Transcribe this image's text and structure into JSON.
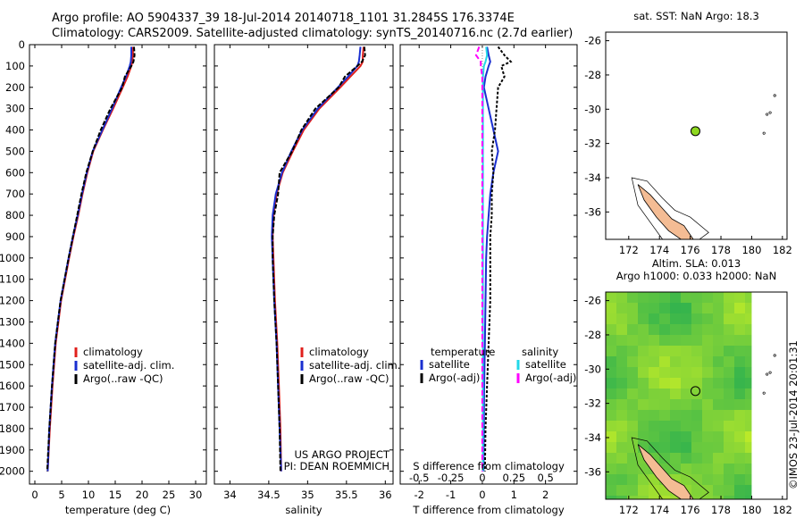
{
  "header": {
    "line1": "Argo profile: AO 5904337_39 18-Jul-2014 20140718_1101 31.2845S 176.3374E",
    "line2": "Climatology: CARS2009. Satellite-adjusted climatology: synTS_20140716.nc (2.7d earlier)"
  },
  "colors": {
    "climatology": "#e0201c",
    "satellite": "#1a2fd0",
    "argo": "#000000",
    "salinity_satellite": "#22d8e8",
    "salinity_argo": "#ff00ff",
    "land": "#f4bc94",
    "marker": "#8ed820"
  },
  "chart_data": [
    {
      "type": "line",
      "panel": "temperature",
      "xlabel": "temperature (deg C)",
      "ylabel": "",
      "xlim": [
        -1,
        32
      ],
      "ylim": [
        2060,
        0
      ],
      "xticks": [
        "0",
        "5",
        "10",
        "15",
        "20",
        "25",
        "30"
      ],
      "yticks": [
        "0",
        "100",
        "200",
        "300",
        "400",
        "500",
        "600",
        "700",
        "800",
        "900",
        "1000",
        "1100",
        "1200",
        "1300",
        "1400",
        "1500",
        "1600",
        "1700",
        "1800",
        "1900",
        "2000"
      ],
      "y": [
        10,
        50,
        80,
        100,
        150,
        200,
        300,
        400,
        500,
        600,
        700,
        800,
        900,
        1000,
        1200,
        1400,
        1600,
        1800,
        2000
      ],
      "series": [
        {
          "name": "climatology",
          "x": [
            18.3,
            18.3,
            18.2,
            18.0,
            17.3,
            16.4,
            14.6,
            12.7,
            10.9,
            9.8,
            8.9,
            8.1,
            7.2,
            6.4,
            4.9,
            3.9,
            3.3,
            2.8,
            2.4
          ]
        },
        {
          "name": "satellite-adj. clim.",
          "x": [
            18.0,
            18.0,
            17.9,
            17.7,
            17.0,
            16.1,
            14.4,
            12.6,
            10.8,
            9.7,
            8.8,
            8.0,
            7.1,
            6.3,
            4.8,
            3.8,
            3.2,
            2.7,
            2.4
          ]
        },
        {
          "name": "Argo(..raw -QC)",
          "x": [
            18.5,
            18.6,
            18.4,
            18.0,
            16.8,
            16.3,
            14.1,
            12.3,
            10.8,
            9.6,
            8.7,
            7.9,
            7.1,
            6.3,
            4.8,
            3.8,
            3.2,
            2.7,
            2.3
          ]
        }
      ],
      "legend": {
        "position": "center",
        "entries": [
          "climatology",
          "satellite-adj. clim.",
          "Argo(..raw -QC)"
        ]
      }
    },
    {
      "type": "line",
      "panel": "salinity",
      "xlabel": "salinity",
      "xlim": [
        33.8,
        36.1
      ],
      "ylim": [
        2060,
        0
      ],
      "xticks": [
        "34",
        "34.5",
        "35",
        "35.5",
        "36"
      ],
      "y": [
        10,
        50,
        80,
        100,
        150,
        200,
        300,
        400,
        500,
        600,
        700,
        800,
        900,
        1000,
        1200,
        1400,
        1600,
        1800,
        2000
      ],
      "series": [
        {
          "name": "climatology",
          "x": [
            35.72,
            35.71,
            35.71,
            35.68,
            35.55,
            35.42,
            35.15,
            34.95,
            34.81,
            34.68,
            34.6,
            34.56,
            34.55,
            34.56,
            34.58,
            34.61,
            34.63,
            34.65,
            34.66
          ]
        },
        {
          "name": "satellite-adj. clim.",
          "x": [
            35.68,
            35.67,
            35.66,
            35.64,
            35.52,
            35.39,
            35.13,
            34.93,
            34.79,
            34.67,
            34.59,
            34.55,
            34.54,
            34.55,
            34.57,
            34.6,
            34.62,
            34.64,
            34.66
          ]
        },
        {
          "name": "Argo(..raw -QC)",
          "x": [
            35.73,
            35.74,
            35.7,
            35.64,
            35.48,
            35.4,
            35.1,
            34.92,
            34.8,
            34.64,
            34.62,
            34.57,
            34.55,
            34.55,
            34.57,
            34.6,
            34.62,
            34.64,
            34.65
          ]
        }
      ],
      "legend": {
        "position": "center",
        "entries": [
          "climatology",
          "satellite-adj. clim.",
          "Argo(..raw -QC)"
        ]
      },
      "annotation": [
        "US ARGO PROJECT",
        "PI: DEAN ROEMMICH"
      ]
    },
    {
      "type": "line",
      "panel": "differences",
      "xlabel": "T difference from climatology",
      "xlabel_top": "S difference from climatology",
      "xlim": [
        -2.6,
        3.0
      ],
      "ylim": [
        2060,
        0
      ],
      "xticks": [
        "-2",
        "-1",
        "0",
        "1",
        "2"
      ],
      "sticks": [
        "-0.5",
        "-0.25",
        "0",
        "0.25",
        "0.5"
      ],
      "y": [
        10,
        50,
        80,
        100,
        150,
        200,
        300,
        400,
        500,
        600,
        700,
        800,
        900,
        1000,
        1200,
        1400,
        1600,
        1800,
        2000
      ],
      "series": [
        {
          "name": "temperature satellite",
          "x": [
            0.15,
            0.2,
            0.25,
            0.2,
            0.1,
            0.05,
            0.2,
            0.35,
            0.5,
            0.35,
            0.25,
            0.2,
            0.15,
            0.12,
            0.1,
            0.08,
            0.06,
            0.05,
            0.04
          ]
        },
        {
          "name": "temperature Argo(-adj)",
          "x": [
            0.5,
            0.7,
            0.9,
            0.6,
            0.7,
            0.5,
            0.45,
            0.4,
            0.3,
            0.35,
            0.3,
            0.3,
            0.25,
            0.25,
            0.25,
            0.2,
            0.15,
            0.1,
            0.08
          ]
        },
        {
          "name": "salinity satellite",
          "x": [
            0.12,
            0.15,
            0.1,
            0.05,
            0.02,
            0.02,
            0.02,
            0.02,
            0.02,
            0.02,
            0.02,
            0.02,
            0.02,
            0.02,
            0.02,
            0.02,
            0.02,
            0.02,
            0.02
          ]
        },
        {
          "name": "salinity Argo(-adj)",
          "x": [
            -0.1,
            -0.2,
            -0.05,
            -0.05,
            0,
            0,
            0,
            0,
            0,
            0,
            0,
            0,
            0,
            0,
            0,
            0,
            0,
            0,
            0
          ]
        }
      ],
      "legend": {
        "position": "center",
        "groups": [
          "temperature",
          "salinity"
        ],
        "entries": [
          "satellite",
          "Argo(-adj)",
          "satellite",
          "Argo(-adj)"
        ]
      }
    },
    {
      "type": "scatter",
      "panel": "sst-map",
      "title": "sat. SST: NaN Argo: 18.3",
      "xlim": [
        170.5,
        182.3
      ],
      "ylim": [
        -37.6,
        -25.5
      ],
      "xticks": [
        "172",
        "174",
        "176",
        "178",
        "180",
        "182"
      ],
      "yticks": [
        "-26",
        "-28",
        "-30",
        "-32",
        "-34",
        "-36"
      ],
      "point": {
        "lon": 176.34,
        "lat": -31.28
      }
    },
    {
      "type": "heatmap",
      "panel": "sla-map",
      "title": "Altim. SLA: 0.013",
      "subtitle": "Argo h1000: 0.033 h2000: NaN",
      "xlim": [
        170.5,
        182.3
      ],
      "ylim": [
        -37.6,
        -25.5
      ],
      "xticks": [
        "172",
        "174",
        "176",
        "178",
        "180",
        "182"
      ],
      "yticks": [
        "-26",
        "-28",
        "-30",
        "-32",
        "-34",
        "-36"
      ],
      "point": {
        "lon": 176.34,
        "lat": -31.28
      }
    }
  ],
  "side_label": "©IMOS 23-Jul-2014 20:01:31"
}
